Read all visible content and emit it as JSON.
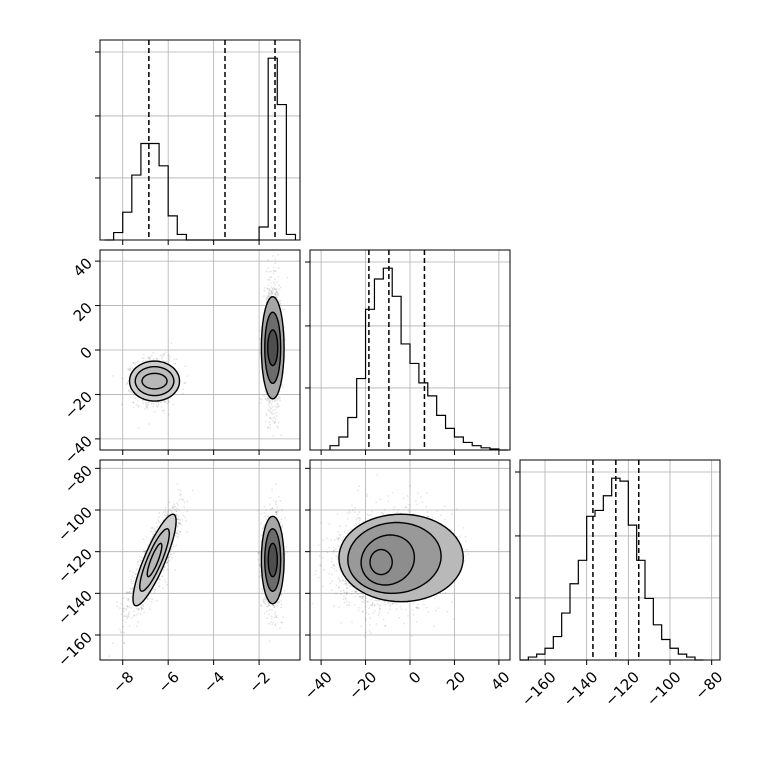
{
  "chart_data": {
    "type": "corner",
    "grid": true,
    "parameters": [
      {
        "key": "p0",
        "range": [
          -9,
          -0.2
        ],
        "ticks": [
          -8,
          -6,
          -4,
          -2
        ],
        "ticklabels": [
          "−8",
          "−6",
          "−4",
          "−2"
        ]
      },
      {
        "key": "p1",
        "range": [
          -45,
          45
        ],
        "ticks": [
          -40,
          -20,
          0,
          20,
          40
        ],
        "ticklabels": [
          "−40",
          "−20",
          "0",
          "20",
          "40"
        ]
      },
      {
        "key": "p2",
        "range": [
          -172,
          -76
        ],
        "ticks": [
          -160,
          -140,
          -120,
          -100,
          -80
        ],
        "ticklabels": [
          "−160",
          "−140",
          "−120",
          "−100",
          "−80"
        ]
      }
    ],
    "histograms": [
      {
        "param": 0,
        "bin_edges": [
          -8.8,
          -8.4,
          -8.0,
          -7.6,
          -7.2,
          -6.8,
          -6.4,
          -6.0,
          -5.6,
          -5.2,
          -4.8,
          -4.4,
          -4.0,
          -3.6,
          -3.2,
          -2.8,
          -2.4,
          -2.0,
          -1.6,
          -1.2,
          -0.8,
          -0.4
        ],
        "counts": [
          0,
          0.4,
          1.5,
          3.5,
          5.2,
          5.2,
          4.0,
          1.3,
          0.3,
          0,
          0,
          0,
          0,
          0,
          0,
          0,
          0,
          0.7,
          9.8,
          7.3,
          0.3
        ],
        "quantiles": [
          -6.85,
          -3.5,
          -1.3
        ]
      },
      {
        "param": 1,
        "bin_edges": [
          -36,
          -32,
          -28,
          -24,
          -20,
          -16,
          -12,
          -8,
          -4,
          0,
          4,
          8,
          12,
          16,
          20,
          24,
          28,
          32,
          36,
          40,
          44
        ],
        "counts": [
          0.2,
          0.6,
          1.5,
          3.3,
          6.5,
          7.9,
          8.4,
          7.1,
          4.9,
          4.0,
          3.1,
          2.5,
          1.6,
          1.0,
          0.6,
          0.35,
          0.2,
          0.1,
          0.05,
          0
        ],
        "quantiles": [
          -18.5,
          -9.5,
          6.5
        ]
      },
      {
        "param": 2,
        "bin_edges": [
          -172,
          -168,
          -164,
          -160,
          -156,
          -152,
          -148,
          -144,
          -140,
          -136,
          -132,
          -128,
          -124,
          -120,
          -116,
          -112,
          -108,
          -104,
          -100,
          -96,
          -92,
          -88,
          -84
        ],
        "counts": [
          0,
          0.1,
          0.2,
          0.4,
          0.8,
          1.6,
          2.6,
          3.4,
          4.9,
          5.1,
          5.6,
          6.2,
          6.1,
          4.6,
          3.4,
          2.1,
          1.2,
          0.7,
          0.4,
          0.2,
          0.1,
          0
        ],
        "quantiles": [
          -137,
          -126,
          -115
        ]
      }
    ],
    "scatter_panels": [
      {
        "x_param": 0,
        "y_param": 1,
        "modes": [
          {
            "mean": [
              -6.6,
              -14
            ],
            "sd": [
              0.45,
              5
            ],
            "rho": 0,
            "weight": 0.5
          },
          {
            "mean": [
              -1.4,
              2
            ],
            "sd": [
              0.18,
              14
            ],
            "rho": 0,
            "weight": 0.5
          }
        ],
        "contours": [
          {
            "cx": -6.6,
            "cy": -14,
            "rx": 0.55,
            "ry": 3.5,
            "rho": 0
          },
          {
            "cx": -6.6,
            "cy": -14,
            "rx": 0.85,
            "ry": 6.5,
            "rho": 0
          },
          {
            "cx": -6.6,
            "cy": -14,
            "rx": 1.1,
            "ry": 9,
            "rho": 0
          },
          {
            "cx": -1.4,
            "cy": 1,
            "rx": 0.22,
            "ry": 8,
            "rho": 0
          },
          {
            "cx": -1.4,
            "cy": 1,
            "rx": 0.35,
            "ry": 16,
            "rho": 0
          },
          {
            "cx": -1.4,
            "cy": 1,
            "rx": 0.5,
            "ry": 23,
            "rho": 0
          }
        ]
      },
      {
        "x_param": 0,
        "y_param": 2,
        "modes": [
          {
            "mean": [
              -6.6,
              -124
            ],
            "sd": [
              0.55,
              12
            ],
            "rho": 0.85,
            "weight": 0.5
          },
          {
            "mean": [
              -1.4,
              -124
            ],
            "sd": [
              0.2,
              11
            ],
            "rho": 0,
            "weight": 0.5
          }
        ],
        "contours": [
          {
            "cx": -6.6,
            "cy": -124,
            "rx": 0.32,
            "ry": 8,
            "rho": 0.85
          },
          {
            "cx": -6.6,
            "cy": -124,
            "rx": 0.65,
            "ry": 15,
            "rho": 0.85
          },
          {
            "cx": -6.6,
            "cy": -124,
            "rx": 0.95,
            "ry": 22,
            "rho": 0.85
          },
          {
            "cx": -1.4,
            "cy": -124,
            "rx": 0.2,
            "ry": 8,
            "rho": 0
          },
          {
            "cx": -1.4,
            "cy": -124,
            "rx": 0.35,
            "ry": 15,
            "rho": 0
          },
          {
            "cx": -1.4,
            "cy": -124,
            "rx": 0.5,
            "ry": 21,
            "rho": 0
          }
        ]
      },
      {
        "x_param": 1,
        "y_param": 2,
        "modes": [
          {
            "mean": [
              -10,
              -124
            ],
            "sd": [
              11,
              11
            ],
            "rho": 0.1,
            "weight": 1
          }
        ],
        "contours": [
          {
            "cx": -13,
            "cy": -125,
            "rx": 5,
            "ry": 6,
            "rho": 0
          },
          {
            "cx": -10,
            "cy": -124,
            "rx": 12,
            "ry": 12,
            "rho": 0.1
          },
          {
            "cx": -7,
            "cy": -123,
            "rx": 21,
            "ry": 17,
            "rho": 0.05
          },
          {
            "cx": -4,
            "cy": -123,
            "rx": 28,
            "ry": 21,
            "rho": 0
          }
        ]
      }
    ]
  }
}
